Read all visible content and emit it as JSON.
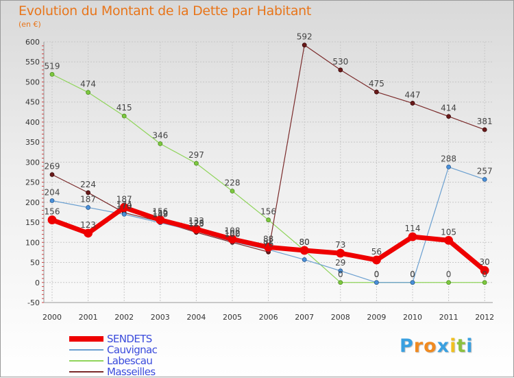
{
  "chart_data": {
    "type": "line",
    "title": "Evolution du Montant de la Dette par Habitant",
    "ylabel": "(en €)",
    "xlabel": "",
    "x": [
      "2000",
      "2001",
      "2002",
      "2003",
      "2004",
      "2005",
      "2006",
      "2007",
      "2008",
      "2009",
      "2010",
      "2011",
      "2012"
    ],
    "ylim": [
      -50,
      600
    ],
    "yticks": [
      -50,
      0,
      50,
      100,
      150,
      200,
      250,
      300,
      350,
      400,
      450,
      500,
      550,
      600
    ],
    "grid": true,
    "legend_position": "bottom-left",
    "series": [
      {
        "name": "SENDETS",
        "color": "#ee0000",
        "values": [
          156,
          123,
          187,
          156,
          133,
          108,
          88,
          80,
          73,
          56,
          114,
          105,
          30
        ],
        "labels": [
          "156",
          "123",
          "187",
          "156",
          "133",
          "108",
          "88",
          "80",
          "73",
          "56",
          "114",
          "105",
          "30"
        ]
      },
      {
        "name": "Cauvignac",
        "color": "#6a9fd0",
        "values": [
          204,
          187,
          170,
          149,
          128,
          102,
          82,
          57,
          29,
          0,
          0,
          288,
          257
        ],
        "labels": [
          "204",
          "187",
          "170",
          "149",
          "128",
          "102",
          "82",
          "",
          "29",
          "0",
          "0",
          "288",
          "257"
        ]
      },
      {
        "name": "Labescau",
        "color": "#8fd45a",
        "values": [
          519,
          474,
          415,
          346,
          297,
          228,
          156,
          80,
          0,
          0,
          0,
          0,
          0
        ],
        "labels": [
          "519",
          "474",
          "415",
          "346",
          "297",
          "228",
          "156",
          "80",
          "0",
          "0",
          "0",
          "0",
          "0"
        ]
      },
      {
        "name": "Masseilles",
        "color": "#7a2a2a",
        "values": [
          269,
          224,
          174,
          152,
          125,
          100,
          76,
          592,
          530,
          475,
          447,
          414,
          381
        ],
        "labels": [
          "269",
          "224",
          "174",
          "152",
          "125",
          "100",
          "76",
          "592",
          "530",
          "475",
          "447",
          "414",
          "381"
        ]
      }
    ]
  },
  "logo": {
    "letters": [
      "P",
      "r",
      "o",
      "x",
      "i",
      "t",
      "i"
    ],
    "colors": [
      "#3aa0e0",
      "#f08a20",
      "#f08a20",
      "#3aa0e0",
      "#f0c020",
      "#8cc040",
      "#3aa0e0"
    ]
  }
}
